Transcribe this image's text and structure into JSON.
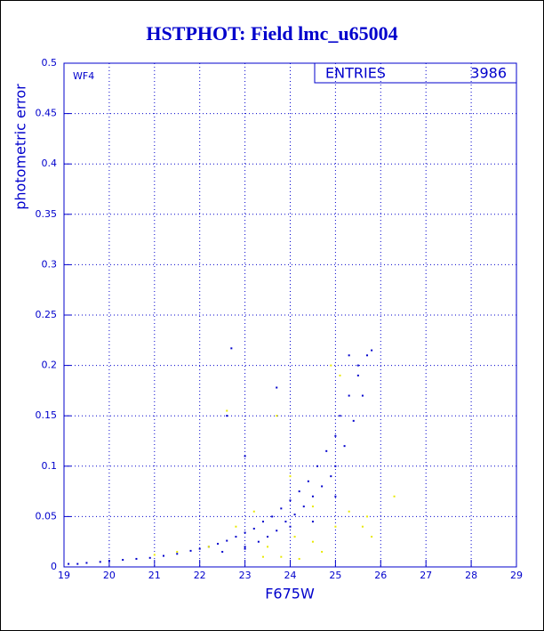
{
  "chart_data": {
    "type": "scatter",
    "title": "HSTPHOT: Field lmc_u65004",
    "annotation": "WF4",
    "stats": {
      "label": "ENTRIES",
      "value": "3986"
    },
    "xlabel": "F675W",
    "ylabel": "photometric error",
    "xlim": [
      19,
      29
    ],
    "xticks": [
      19,
      20,
      21,
      22,
      23,
      24,
      25,
      26,
      27,
      28,
      29
    ],
    "ylim": [
      0,
      0.5
    ],
    "yticks": [
      0,
      0.05,
      0.1,
      0.15,
      0.2,
      0.25,
      0.3,
      0.35,
      0.4,
      0.45,
      0.5
    ],
    "grid": true,
    "series": [
      {
        "color": "#0000cc",
        "x": [
          19.1,
          19.3,
          19.5,
          19.8,
          20.0,
          20.3,
          20.6,
          20.9,
          21.2,
          21.5,
          21.8,
          22.0,
          22.2,
          22.4,
          22.6,
          22.8,
          23.0,
          23.0,
          23.2,
          23.3,
          23.4,
          23.5,
          23.6,
          23.7,
          23.8,
          23.9,
          24.0,
          24.1,
          24.2,
          24.3,
          24.4,
          24.5,
          24.6,
          24.7,
          24.8,
          24.9,
          25.0,
          25.0,
          25.1,
          25.2,
          25.3,
          25.4,
          25.5,
          25.6,
          25.7,
          25.8,
          25.5,
          25.3,
          22.7,
          23.7,
          22.6,
          23.0,
          22.5,
          23.0,
          24.0,
          24.5,
          25.0
        ],
        "y": [
          0.003,
          0.003,
          0.004,
          0.005,
          0.006,
          0.007,
          0.008,
          0.009,
          0.011,
          0.013,
          0.016,
          0.018,
          0.02,
          0.023,
          0.026,
          0.03,
          0.034,
          0.02,
          0.038,
          0.025,
          0.045,
          0.03,
          0.05,
          0.036,
          0.058,
          0.045,
          0.066,
          0.052,
          0.075,
          0.06,
          0.085,
          0.07,
          0.1,
          0.08,
          0.115,
          0.09,
          0.13,
          0.1,
          0.15,
          0.12,
          0.17,
          0.145,
          0.19,
          0.17,
          0.21,
          0.215,
          0.2,
          0.21,
          0.217,
          0.178,
          0.15,
          0.11,
          0.015,
          0.018,
          0.04,
          0.045,
          0.07
        ]
      },
      {
        "color": "#e8e800",
        "x": [
          22.8,
          23.2,
          23.5,
          23.8,
          24.1,
          24.5,
          24.7,
          25.0,
          25.3,
          25.6,
          25.8,
          24.9,
          25.1,
          24.5,
          22.2,
          21.5,
          22.6,
          24.2,
          23.4,
          26.3,
          25.7,
          23.7,
          21.0,
          24.0
        ],
        "y": [
          0.04,
          0.055,
          0.02,
          0.01,
          0.03,
          0.025,
          0.015,
          0.04,
          0.055,
          0.04,
          0.03,
          0.2,
          0.19,
          0.06,
          0.02,
          0.015,
          0.155,
          0.008,
          0.01,
          0.07,
          0.05,
          0.15,
          0.012,
          0.09
        ]
      }
    ]
  }
}
